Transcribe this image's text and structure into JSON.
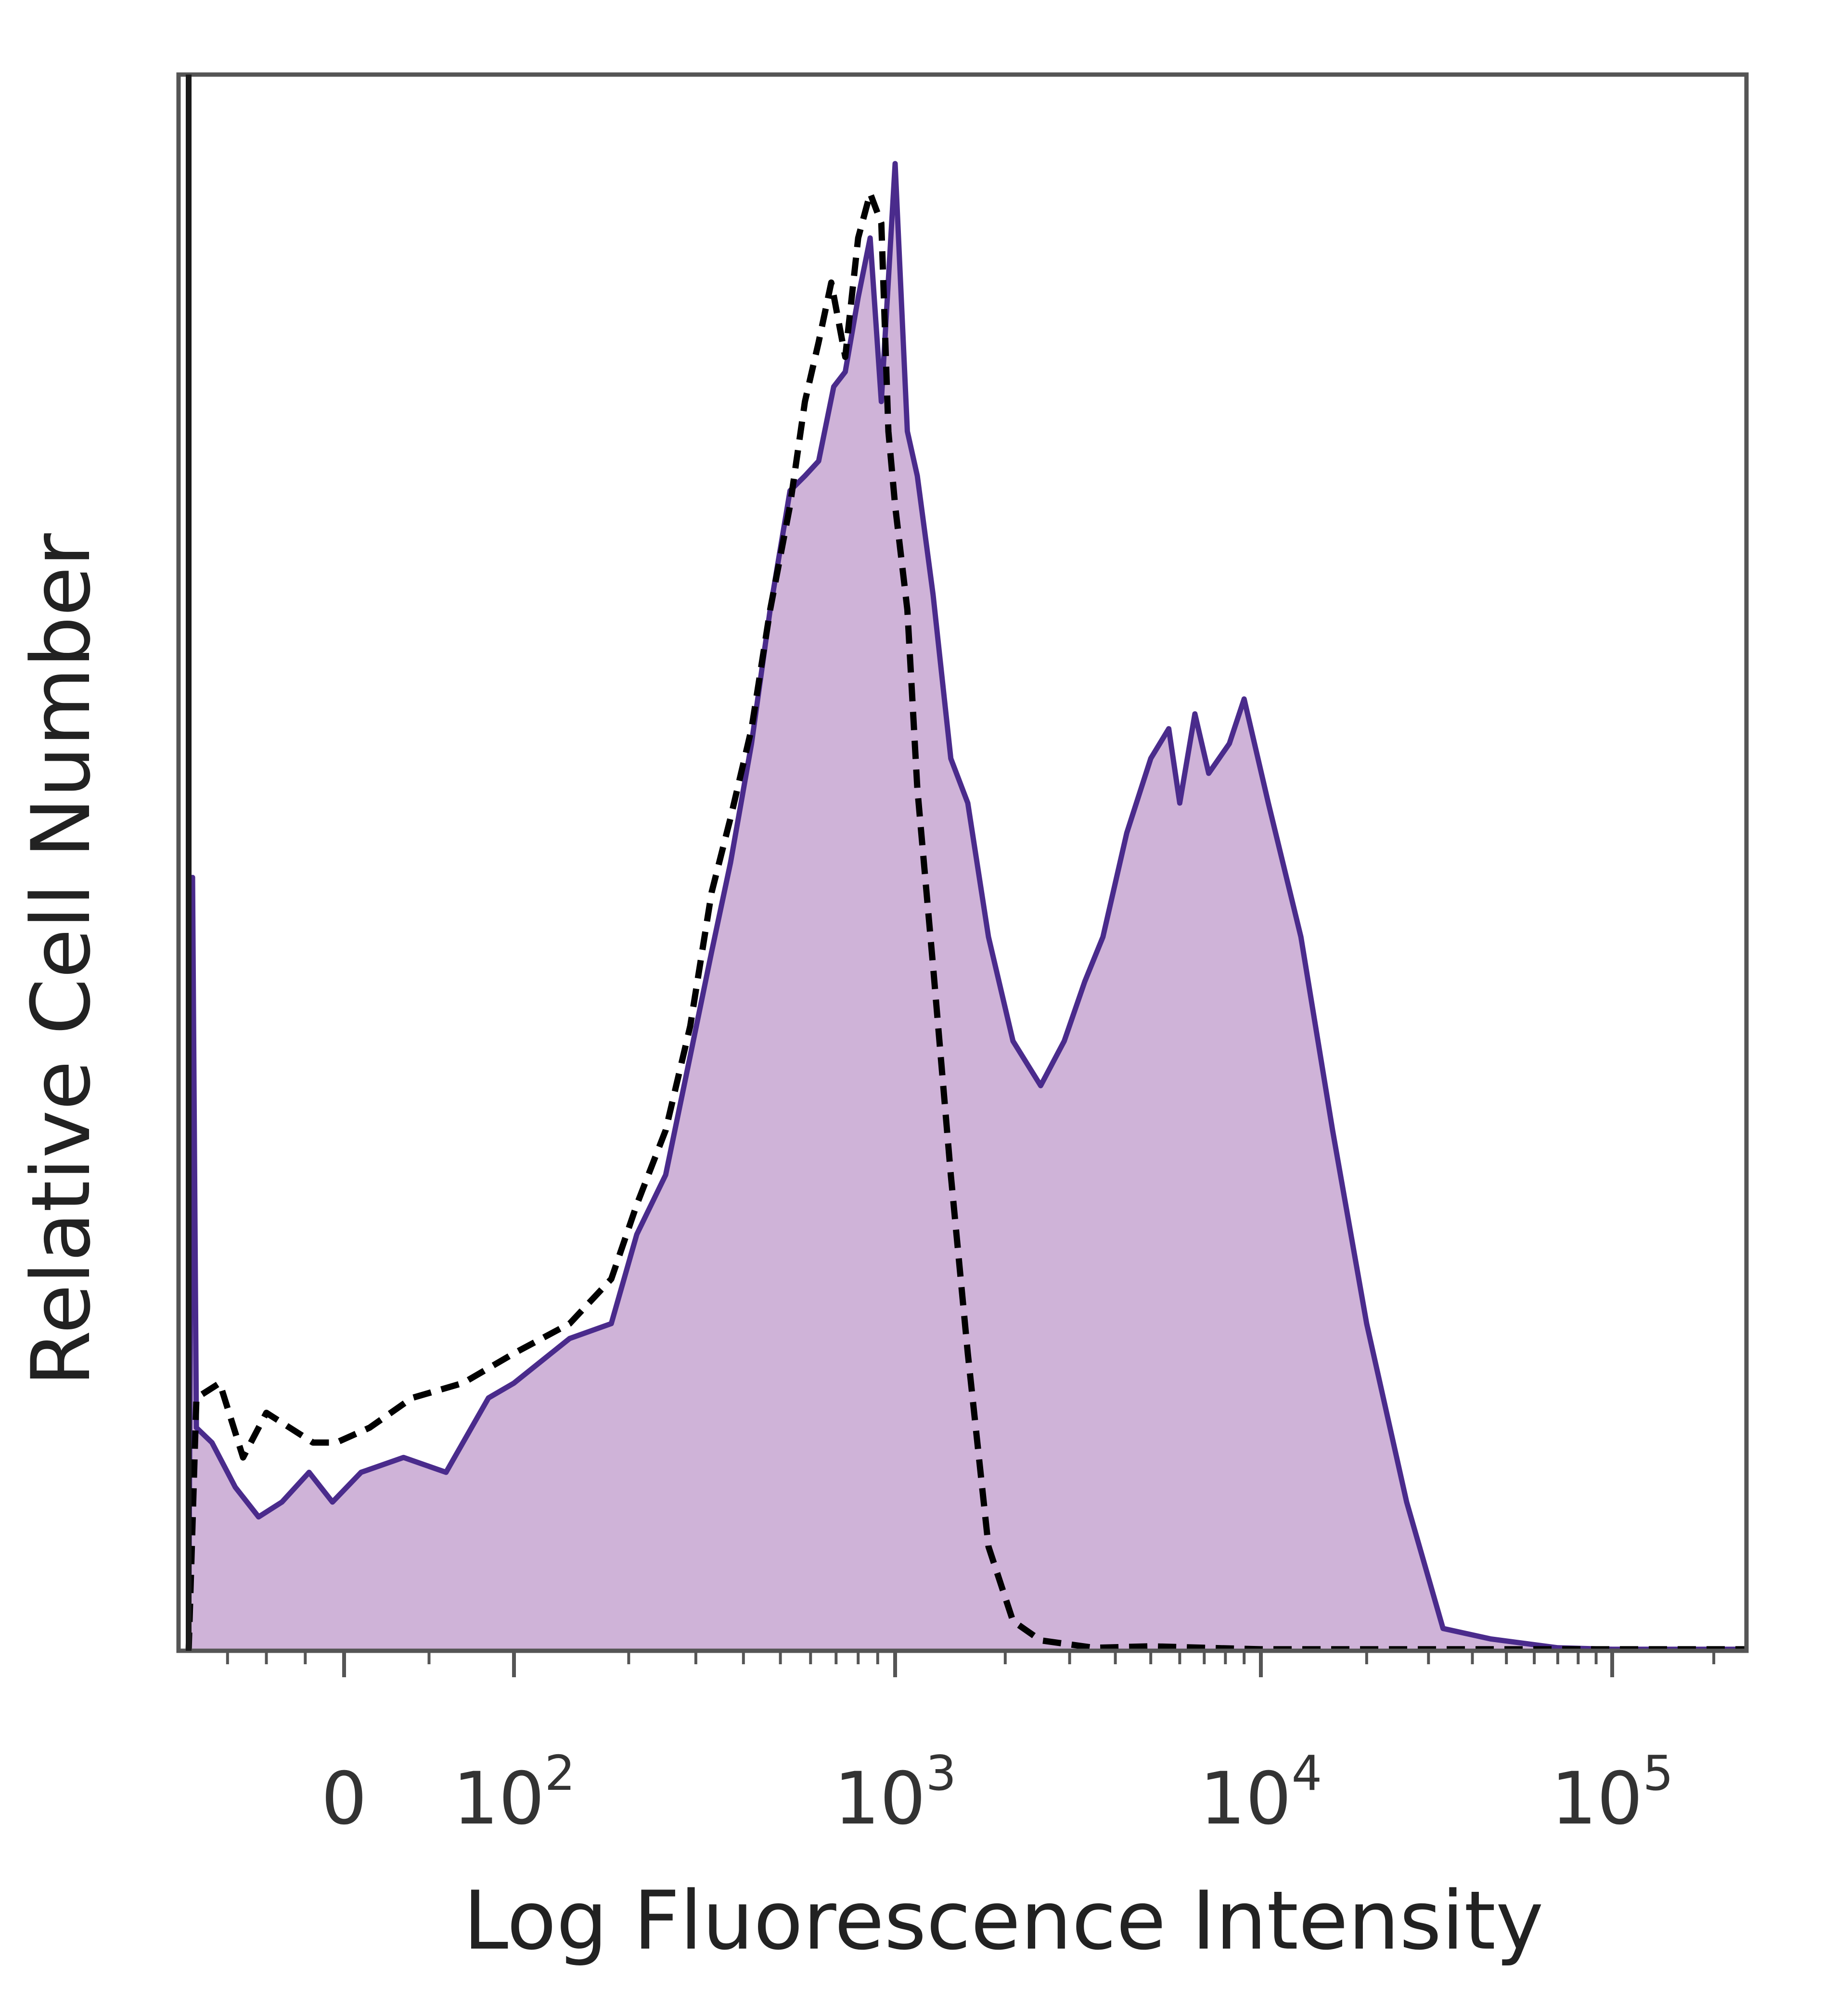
{
  "chart_data": {
    "type": "area",
    "title": "",
    "xlabel": "Log Fluorescence Intensity",
    "ylabel": "Relative Cell Number",
    "x_scale": "biexponential",
    "x_tick_labels": [
      {
        "value": 0,
        "base": "0",
        "exp": ""
      },
      {
        "value": 100,
        "base": "10",
        "exp": "2"
      },
      {
        "value": 1000,
        "base": "10",
        "exp": "3"
      },
      {
        "value": 10000,
        "base": "10",
        "exp": "4"
      },
      {
        "value": 100000,
        "base": "10",
        "exp": "5"
      }
    ],
    "xlim": [
      -200,
      250000
    ],
    "ylim": [
      0,
      100
    ],
    "grid": false,
    "legend": "none",
    "series": [
      {
        "style": "filled-solid",
        "line_color": "#4a2b8c",
        "fill_color": "#cfb3d8",
        "points": [
          [
            -200,
            0
          ],
          [
            -195,
            52
          ],
          [
            -190,
            15
          ],
          [
            -170,
            14
          ],
          [
            -140,
            11
          ],
          [
            -110,
            9
          ],
          [
            -80,
            10
          ],
          [
            -45,
            12
          ],
          [
            -15,
            10
          ],
          [
            10,
            12
          ],
          [
            35,
            13
          ],
          [
            60,
            12
          ],
          [
            85,
            17
          ],
          [
            100,
            18
          ],
          [
            140,
            21
          ],
          [
            180,
            22
          ],
          [
            210,
            28
          ],
          [
            250,
            32
          ],
          [
            290,
            40
          ],
          [
            330,
            47
          ],
          [
            370,
            53
          ],
          [
            420,
            61
          ],
          [
            470,
            70
          ],
          [
            530,
            78
          ],
          [
            580,
            79
          ],
          [
            630,
            80
          ],
          [
            690,
            85
          ],
          [
            740,
            86
          ],
          [
            800,
            91
          ],
          [
            860,
            95
          ],
          [
            920,
            84
          ],
          [
            1000,
            100
          ],
          [
            1080,
            82
          ],
          [
            1150,
            79
          ],
          [
            1270,
            71
          ],
          [
            1420,
            60
          ],
          [
            1580,
            57
          ],
          [
            1800,
            48
          ],
          [
            2100,
            41
          ],
          [
            2500,
            38
          ],
          [
            2900,
            41
          ],
          [
            3300,
            45
          ],
          [
            3700,
            48
          ],
          [
            4300,
            55
          ],
          [
            5000,
            60
          ],
          [
            5600,
            62
          ],
          [
            6000,
            57
          ],
          [
            6600,
            63
          ],
          [
            7200,
            59
          ],
          [
            8200,
            61
          ],
          [
            9000,
            64
          ],
          [
            10500,
            57
          ],
          [
            13000,
            48
          ],
          [
            16000,
            35
          ],
          [
            20000,
            22
          ],
          [
            26000,
            10
          ],
          [
            33000,
            1.5
          ],
          [
            45000,
            0.8
          ],
          [
            70000,
            0.2
          ],
          [
            100000,
            0.1
          ],
          [
            150000,
            0.1
          ],
          [
            250000,
            0.1
          ]
        ]
      },
      {
        "style": "dashed",
        "line_color": "#000000",
        "fill_color": "none",
        "points": [
          [
            -200,
            0
          ],
          [
            -190,
            17
          ],
          [
            -160,
            18
          ],
          [
            -130,
            13
          ],
          [
            -100,
            16
          ],
          [
            -70,
            15
          ],
          [
            -40,
            14
          ],
          [
            -10,
            14
          ],
          [
            15,
            15
          ],
          [
            40,
            17
          ],
          [
            70,
            18
          ],
          [
            100,
            20
          ],
          [
            140,
            22
          ],
          [
            180,
            25
          ],
          [
            210,
            30
          ],
          [
            250,
            35
          ],
          [
            290,
            42
          ],
          [
            330,
            51
          ],
          [
            370,
            56
          ],
          [
            420,
            62
          ],
          [
            470,
            70
          ],
          [
            530,
            77
          ],
          [
            580,
            84
          ],
          [
            630,
            88
          ],
          [
            680,
            92
          ],
          [
            740,
            87
          ],
          [
            800,
            95
          ],
          [
            860,
            98
          ],
          [
            920,
            96
          ],
          [
            960,
            82
          ],
          [
            1000,
            77
          ],
          [
            1080,
            70
          ],
          [
            1150,
            58
          ],
          [
            1270,
            46
          ],
          [
            1420,
            32
          ],
          [
            1580,
            20
          ],
          [
            1800,
            7
          ],
          [
            2100,
            2
          ],
          [
            2500,
            0.7
          ],
          [
            3500,
            0.2
          ],
          [
            5000,
            0.3
          ],
          [
            7000,
            0.2
          ],
          [
            10000,
            0.1
          ],
          [
            20000,
            0.1
          ],
          [
            50000,
            0.1
          ],
          [
            100000,
            0.1
          ],
          [
            250000,
            0.1
          ]
        ]
      }
    ]
  }
}
